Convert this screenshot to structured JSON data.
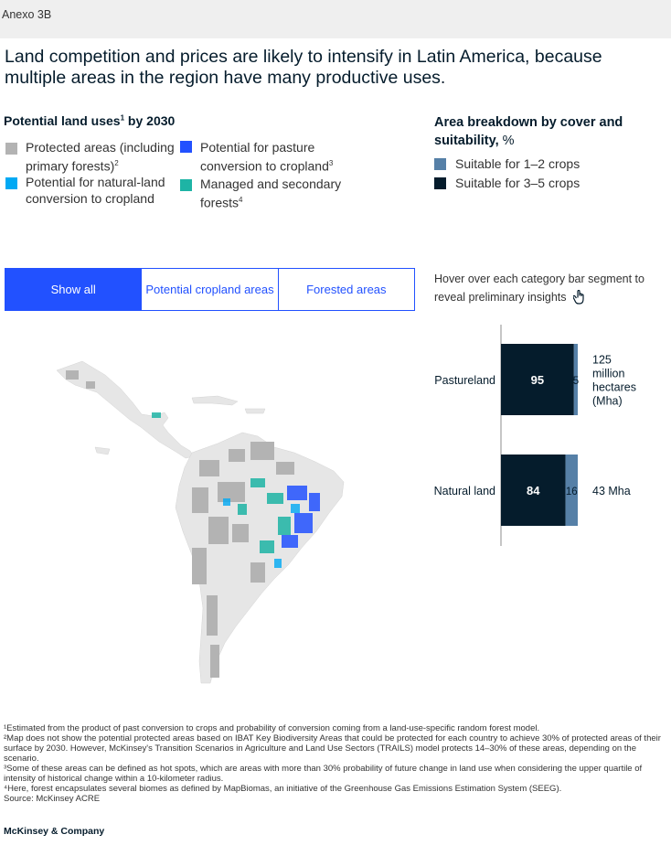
{
  "exhibit_label": "Anexo 3B",
  "headline": "Land competition and prices are likely to intensify in Latin America, because multiple areas in the region have many productive uses.",
  "legend": {
    "title": "Potential land uses",
    "title_sup": "1",
    "title_suffix": " by 2030",
    "items": [
      {
        "label": "Protected areas (including primary forests)",
        "sup": "2",
        "color": "#b3b3b3"
      },
      {
        "label": "Potential for pasture conversion to cropland",
        "sup": "3",
        "color": "#2251ff"
      },
      {
        "label": "Potential for natural-land conversion to cropland",
        "sup": "",
        "color": "#00a9f4"
      },
      {
        "label": "Managed and secondary forests",
        "sup": "4",
        "color": "#1eb4a5"
      }
    ]
  },
  "breakdown": {
    "title": "Area breakdown by cover and suitability,",
    "unit": " %",
    "items": [
      {
        "label": "Suitable for 1–2 crops",
        "color": "#5680a7"
      },
      {
        "label": "Suitable for 3–5 crops",
        "color": "#051c2c"
      }
    ]
  },
  "tabs": [
    {
      "label": "Show all",
      "active": true
    },
    {
      "label": "Potential cropland areas",
      "active": false
    },
    {
      "label": "Forested areas",
      "active": false
    }
  ],
  "hover_hint": "Hover over each category bar segment to reveal preliminary insights",
  "chart_data": {
    "type": "bar",
    "orientation": "horizontal",
    "stacked": true,
    "categories": [
      "Pastureland",
      "Natural land"
    ],
    "series": [
      {
        "name": "Suitable for 3–5 crops",
        "values": [
          95,
          84
        ],
        "color": "#051c2c"
      },
      {
        "name": "Suitable for 1–2 crops",
        "values": [
          5,
          16
        ],
        "color": "#5680a7"
      }
    ],
    "totals": [
      "125 million hectares (Mha)",
      "43 Mha"
    ],
    "xlim": [
      0,
      100
    ]
  },
  "footnotes": [
    "¹Estimated from the product of past conversion to crops and probability of conversion coming from a land-use-specific random forest model.",
    "²Map does not show the potential protected areas based on IBAT Key Biodiversity Areas that could be protected for each country to achieve 30% of protected areas of their surface by 2030. However, McKinsey's Transition Scenarios in Agriculture and Land Use Sectors (TRAILS) model protects 14–30% of these areas, depending on the scenario.",
    "³Some of these areas can be defined as hot spots, which are areas with more than 30% probability of future change in land use when considering the upper quartile of intensity of historical change within a 10-kilometer radius.",
    "⁴Here, forest encapsulates several biomes as defined by MapBiomas, an initiative of the Greenhouse Gas Emissions Estimation System (SEEG).",
    "Source: McKinsey ACRE"
  ],
  "brand": "McKinsey & Company"
}
